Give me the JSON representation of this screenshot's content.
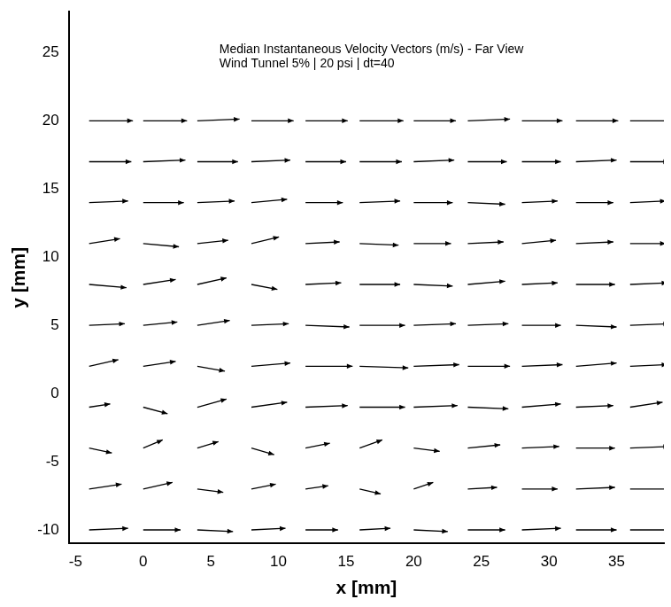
{
  "chart_data": {
    "type": "vector",
    "title": [
      "Median Instantaneous Velocity Vectors (m/s) - Far View",
      "Wind Tunnel 5% | 20 psi | dt=40"
    ],
    "x_label": "x [mm]",
    "y_label": "y [mm]",
    "color": "#000000",
    "grid": false,
    "xlim": [
      -5.5,
      38.5
    ],
    "ylim": [
      -11,
      28
    ],
    "xticks": [
      -5,
      0,
      5,
      10,
      15,
      20,
      25,
      30,
      35
    ],
    "yticks": [
      -10,
      -5,
      0,
      5,
      10,
      15,
      20,
      25
    ],
    "x": [
      -4,
      0,
      4,
      8,
      12,
      16,
      20,
      24,
      28,
      32,
      36
    ],
    "y": [
      -10,
      -7,
      -4,
      -1,
      2,
      5,
      8,
      11,
      14,
      17,
      20
    ],
    "u": [
      [
        2.4,
        2.3,
        2.2,
        2.1,
        2.0,
        1.9,
        2.1,
        2.3,
        2.4,
        2.5,
        2.5
      ],
      [
        2.0,
        1.8,
        1.6,
        1.5,
        1.4,
        1.3,
        1.2,
        1.8,
        2.2,
        2.4,
        2.5
      ],
      [
        1.4,
        1.2,
        1.3,
        1.4,
        1.5,
        1.4,
        1.6,
        2.0,
        2.3,
        2.4,
        2.4
      ],
      [
        1.3,
        1.5,
        1.8,
        2.2,
        2.6,
        2.8,
        2.7,
        2.5,
        2.4,
        2.3,
        2.0
      ],
      [
        1.8,
        2.0,
        1.7,
        2.4,
        2.9,
        3.0,
        2.8,
        2.6,
        2.5,
        2.5,
        2.3
      ],
      [
        2.2,
        2.1,
        2.0,
        2.3,
        2.7,
        2.8,
        2.6,
        2.5,
        2.4,
        2.5,
        2.4
      ],
      [
        2.3,
        2.0,
        1.8,
        1.6,
        2.2,
        2.5,
        2.4,
        2.3,
        2.2,
        2.4,
        2.3
      ],
      [
        1.9,
        2.2,
        1.9,
        1.7,
        2.1,
        2.4,
        2.3,
        2.2,
        2.1,
        2.3,
        2.2
      ],
      [
        2.4,
        2.5,
        2.3,
        2.2,
        2.3,
        2.5,
        2.4,
        2.3,
        2.2,
        2.3,
        2.2
      ],
      [
        2.6,
        2.6,
        2.5,
        2.4,
        2.5,
        2.6,
        2.5,
        2.4,
        2.4,
        2.5,
        2.4
      ],
      [
        2.7,
        2.7,
        2.6,
        2.6,
        2.6,
        2.7,
        2.6,
        2.6,
        2.5,
        2.6,
        2.5
      ]
    ],
    "v": [
      [
        0.1,
        0.0,
        -0.1,
        0.1,
        0.0,
        0.1,
        -0.1,
        0.0,
        0.1,
        0.0,
        0.0
      ],
      [
        0.3,
        0.4,
        -0.2,
        0.3,
        0.2,
        -0.3,
        0.4,
        0.1,
        0.0,
        0.1,
        0.0
      ],
      [
        -0.3,
        0.5,
        0.4,
        -0.4,
        0.3,
        0.5,
        -0.2,
        0.2,
        0.1,
        0.0,
        0.1
      ],
      [
        0.2,
        -0.4,
        0.5,
        0.3,
        0.1,
        0.0,
        0.1,
        -0.1,
        0.2,
        0.1,
        0.3
      ],
      [
        0.4,
        0.3,
        -0.3,
        0.2,
        0.0,
        -0.1,
        0.1,
        0.0,
        0.1,
        0.2,
        0.1
      ],
      [
        0.1,
        0.2,
        0.3,
        0.1,
        -0.1,
        0.0,
        0.1,
        0.1,
        0.0,
        -0.1,
        0.1
      ],
      [
        -0.2,
        0.3,
        0.4,
        -0.3,
        0.1,
        0.0,
        -0.1,
        0.2,
        0.1,
        0.0,
        0.1
      ],
      [
        0.3,
        -0.2,
        0.2,
        0.4,
        0.1,
        -0.1,
        0.0,
        0.1,
        0.2,
        0.1,
        0.0
      ],
      [
        0.1,
        0.0,
        0.1,
        0.2,
        0.0,
        0.1,
        0.0,
        -0.1,
        0.1,
        0.0,
        0.1
      ],
      [
        0.0,
        0.1,
        0.0,
        0.1,
        0.0,
        0.0,
        0.1,
        0.0,
        0.0,
        0.1,
        0.0
      ],
      [
        0.0,
        0.0,
        0.1,
        0.0,
        0.0,
        0.0,
        0.0,
        0.1,
        0.0,
        0.0,
        0.0
      ]
    ]
  }
}
